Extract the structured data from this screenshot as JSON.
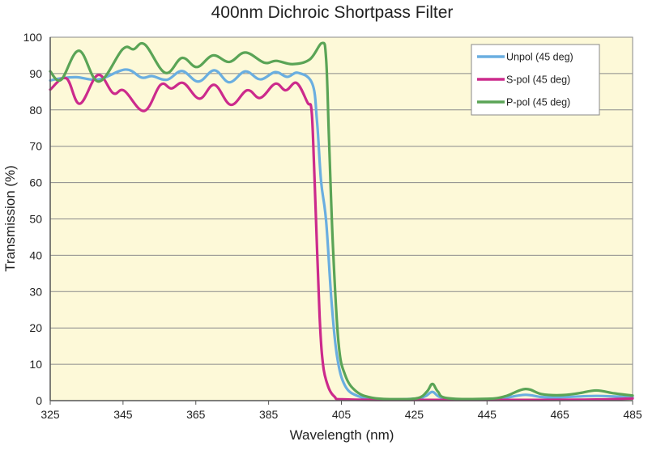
{
  "chart_data": {
    "type": "line",
    "title": "400nm Dichroic Shortpass Filter",
    "xlabel": "Wavelength (nm)",
    "ylabel": "Transmission (%)",
    "xlim": [
      325,
      485
    ],
    "ylim": [
      0,
      100
    ],
    "xticks": [
      325,
      345,
      365,
      385,
      405,
      425,
      445,
      465,
      485
    ],
    "yticks": [
      0,
      10,
      20,
      30,
      40,
      50,
      60,
      70,
      80,
      90,
      100
    ],
    "grid": "horizontal",
    "legend_position": "top-right",
    "background_color": "#fdf9d8",
    "series": [
      {
        "name": "Unpol (45 deg)",
        "color": "#6aaee0",
        "points": [
          [
            325,
            88.1
          ],
          [
            328,
            88.7
          ],
          [
            332.2,
            89
          ],
          [
            338.3,
            88.4
          ],
          [
            345.7,
            91.1
          ],
          [
            350.1,
            88.9
          ],
          [
            353,
            89.3
          ],
          [
            357.1,
            88.3
          ],
          [
            361.2,
            90.7
          ],
          [
            365.7,
            87.8
          ],
          [
            370.1,
            90.9
          ],
          [
            374.2,
            87.6
          ],
          [
            378.6,
            90.6
          ],
          [
            382.7,
            88.4
          ],
          [
            386.8,
            90.4
          ],
          [
            390.1,
            89.1
          ],
          [
            393.1,
            90.2
          ],
          [
            397,
            87.2
          ],
          [
            398.3,
            76.8
          ],
          [
            399.4,
            60.5
          ],
          [
            400.8,
            49.4
          ],
          [
            402.3,
            27.1
          ],
          [
            403.8,
            12.2
          ],
          [
            406,
            4.1
          ],
          [
            409.7,
            1.2
          ],
          [
            415,
            0.4
          ],
          [
            425,
            0.5
          ],
          [
            428,
            1.2
          ],
          [
            430,
            2.4
          ],
          [
            432,
            1.0
          ],
          [
            436,
            0.4
          ],
          [
            445,
            0.4
          ],
          [
            450,
            0.8
          ],
          [
            455.5,
            1.6
          ],
          [
            460,
            1.0
          ],
          [
            465,
            0.9
          ],
          [
            475,
            1.3
          ],
          [
            485,
            0.9
          ]
        ]
      },
      {
        "name": "S-pol (45 deg)",
        "color": "#cc2a8c",
        "points": [
          [
            325,
            85.6
          ],
          [
            329.4,
            88.7
          ],
          [
            333.1,
            81.7
          ],
          [
            338.1,
            89.6
          ],
          [
            342.3,
            84.6
          ],
          [
            345.3,
            85.3
          ],
          [
            350.8,
            79.7
          ],
          [
            355.3,
            86.9
          ],
          [
            358.3,
            85.9
          ],
          [
            361.6,
            87.4
          ],
          [
            366,
            83.1
          ],
          [
            370.1,
            86.9
          ],
          [
            374.6,
            81.4
          ],
          [
            379.1,
            85.4
          ],
          [
            382.7,
            83.3
          ],
          [
            386.8,
            87.2
          ],
          [
            389.7,
            85.4
          ],
          [
            392.7,
            87.4
          ],
          [
            395.7,
            82
          ],
          [
            396.8,
            79.8
          ],
          [
            397.5,
            64.2
          ],
          [
            398.3,
            41.9
          ],
          [
            399,
            23.4
          ],
          [
            399.7,
            12.2
          ],
          [
            400.8,
            5.6
          ],
          [
            403,
            1.2
          ],
          [
            407,
            0.3
          ],
          [
            430,
            0.2
          ],
          [
            460,
            0.2
          ],
          [
            475,
            0.3
          ],
          [
            485,
            0.6
          ]
        ]
      },
      {
        "name": "P-pol (45 deg)",
        "color": "#5aa456",
        "points": [
          [
            325,
            90.6
          ],
          [
            328,
            88.3
          ],
          [
            332.9,
            96.3
          ],
          [
            338.3,
            87.8
          ],
          [
            344.9,
            96.7
          ],
          [
            347.9,
            96.7
          ],
          [
            351,
            98
          ],
          [
            356.6,
            90.2
          ],
          [
            361.2,
            94.3
          ],
          [
            365.3,
            91.8
          ],
          [
            369.7,
            95
          ],
          [
            374.2,
            93.2
          ],
          [
            378.6,
            95.8
          ],
          [
            383.8,
            93
          ],
          [
            387.1,
            93.5
          ],
          [
            391.6,
            92.6
          ],
          [
            396.3,
            93.9
          ],
          [
            399.7,
            98.4
          ],
          [
            400.8,
            94
          ],
          [
            401.6,
            71.7
          ],
          [
            402.7,
            41.9
          ],
          [
            404.2,
            16
          ],
          [
            406,
            7.1
          ],
          [
            409,
            2.6
          ],
          [
            413.4,
            0.8
          ],
          [
            420,
            0.4
          ],
          [
            426,
            0.7
          ],
          [
            428.5,
            2.5
          ],
          [
            430,
            4.6
          ],
          [
            431.5,
            2.5
          ],
          [
            434,
            0.7
          ],
          [
            445,
            0.5
          ],
          [
            450,
            1.2
          ],
          [
            455.5,
            3.2
          ],
          [
            460,
            1.8
          ],
          [
            465,
            1.5
          ],
          [
            470,
            2.0
          ],
          [
            475,
            2.8
          ],
          [
            480,
            2.0
          ],
          [
            485,
            1.4
          ]
        ]
      }
    ]
  }
}
